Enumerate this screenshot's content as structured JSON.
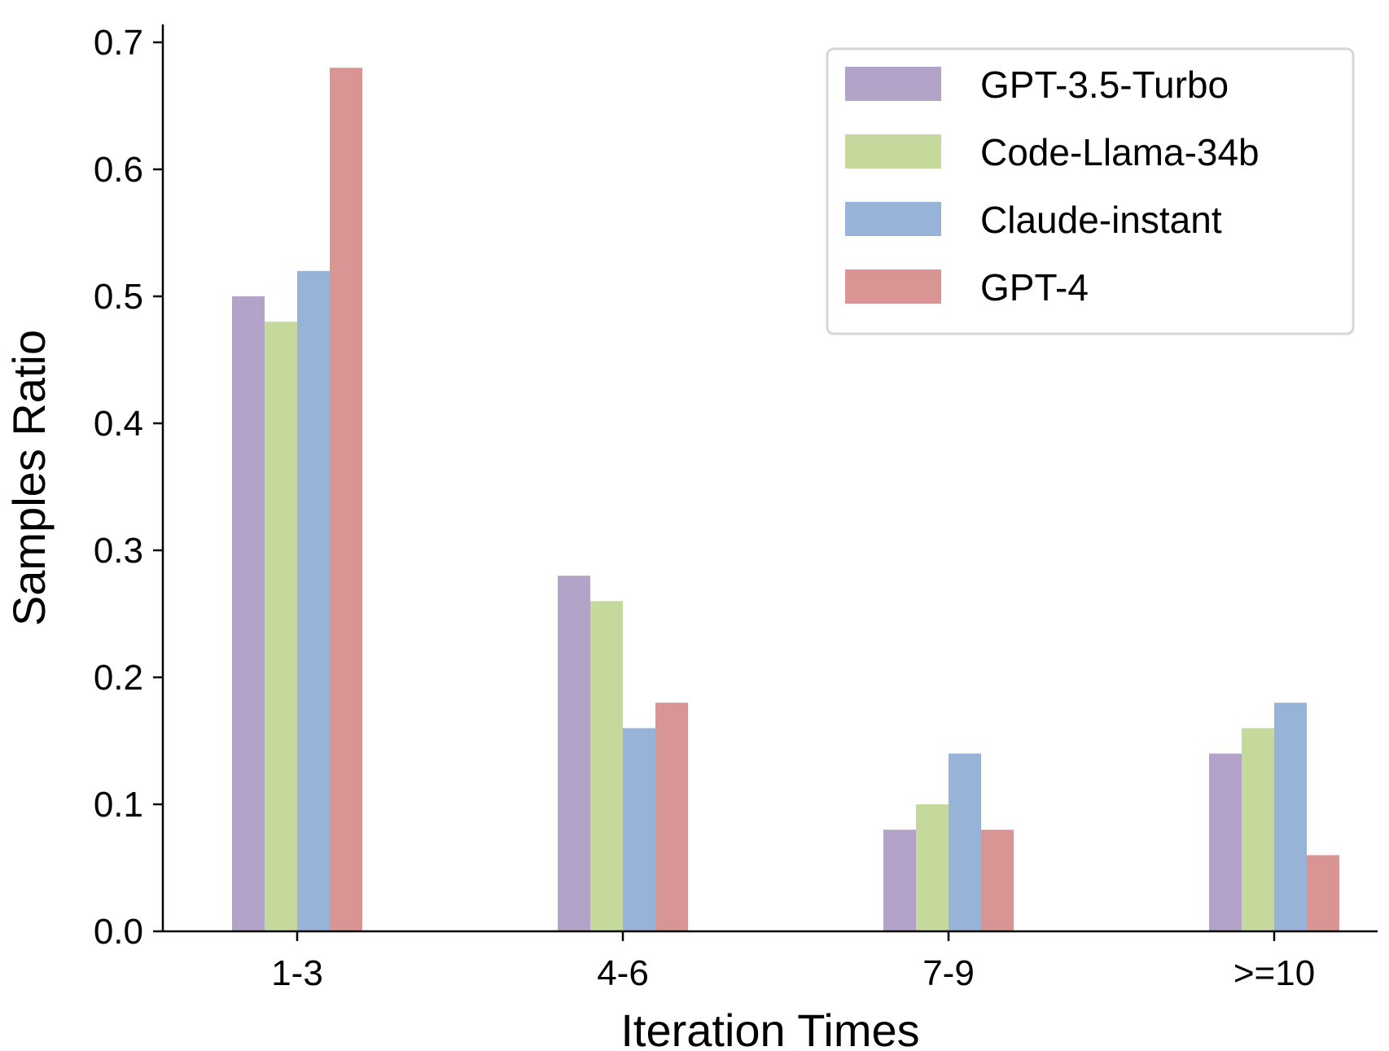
{
  "chart_data": {
    "type": "bar",
    "title": "",
    "xlabel": "Iteration Times",
    "ylabel": "Samples Ratio",
    "categories": [
      "1-3",
      "4-6",
      "7-9",
      ">=10"
    ],
    "ylim": [
      0,
      0.7
    ],
    "yticks": [
      0.0,
      0.1,
      0.2,
      0.3,
      0.4,
      0.5,
      0.6,
      0.7
    ],
    "ytick_labels": [
      "0.0",
      "0.1",
      "0.2",
      "0.3",
      "0.4",
      "0.5",
      "0.6",
      "0.7"
    ],
    "grid": false,
    "legend_position": "top-right",
    "series": [
      {
        "name": "GPT-3.5-Turbo",
        "color": "#b3a3c8",
        "values": [
          0.5,
          0.28,
          0.08,
          0.14
        ]
      },
      {
        "name": "Code-Llama-34b",
        "color": "#c5d99d",
        "values": [
          0.48,
          0.26,
          0.1,
          0.16
        ]
      },
      {
        "name": "Claude-instant",
        "color": "#97b4d8",
        "values": [
          0.52,
          0.16,
          0.14,
          0.18
        ]
      },
      {
        "name": "GPT-4",
        "color": "#d99594",
        "values": [
          0.68,
          0.18,
          0.08,
          0.06
        ]
      }
    ]
  }
}
